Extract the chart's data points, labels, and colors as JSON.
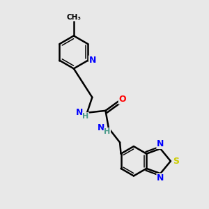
{
  "background_color": "#e8e8e8",
  "bond_color": "#000000",
  "bond_width": 1.8,
  "atom_colors": {
    "N": "#0000ff",
    "O": "#ff0000",
    "S": "#cccc00",
    "H": "#4a9a8a",
    "C": "#000000"
  },
  "figsize": [
    3.0,
    3.0
  ],
  "dpi": 100
}
